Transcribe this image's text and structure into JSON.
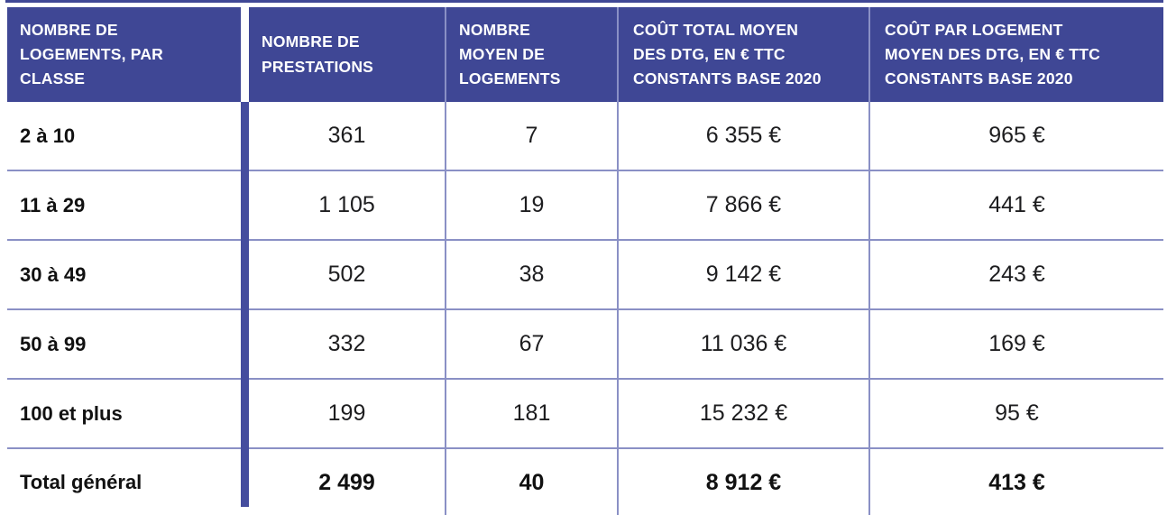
{
  "colors": {
    "header_bg": "#3F4795",
    "divider_bar": "#454D9E",
    "grid_line": "#8A90C5",
    "header_text": "#FFFFFF",
    "body_text": "#1D1D1F"
  },
  "table": {
    "header": {
      "classe": "NOMBRE DE\nLOGEMENTS, PAR\nCLASSE",
      "prestations": "NOMBRE DE\nPRESTATIONS",
      "moyen_logements": "NOMBRE\nMOYEN DE\nLOGEMENTS",
      "cout_total": "COÛT TOTAL MOYEN\nDES DTG, EN € TTC\nCONSTANTS BASE 2020",
      "cout_par_logement": "COÛT PAR LOGEMENT\nMOYEN DES DTG, EN € TTC\nCONSTANTS BASE 2020"
    },
    "rows": [
      {
        "classe": "2 à 10",
        "prestations": "361",
        "moyen_logements": "7",
        "cout_total": "6 355 €",
        "cout_par_logement": "965 €"
      },
      {
        "classe": "11 à 29",
        "prestations": "1 105",
        "moyen_logements": "19",
        "cout_total": "7 866 €",
        "cout_par_logement": "441 €"
      },
      {
        "classe": "30 à 49",
        "prestations": "502",
        "moyen_logements": "38",
        "cout_total": "9 142 €",
        "cout_par_logement": "243 €"
      },
      {
        "classe": "50 à 99",
        "prestations": "332",
        "moyen_logements": "67",
        "cout_total": "11 036 €",
        "cout_par_logement": "169 €"
      },
      {
        "classe": "100 et plus",
        "prestations": "199",
        "moyen_logements": "181",
        "cout_total": "15 232 €",
        "cout_par_logement": "95 €"
      }
    ],
    "total": {
      "classe": "Total général",
      "prestations": "2 499",
      "moyen_logements": "40",
      "cout_total": "8 912 €",
      "cout_par_logement": "413 €"
    }
  },
  "chart_data": {
    "type": "table",
    "columns": [
      "NOMBRE DE LOGEMENTS, PAR CLASSE",
      "NOMBRE DE PRESTATIONS",
      "NOMBRE MOYEN DE LOGEMENTS",
      "COÛT TOTAL MOYEN DES DTG, EN € TTC CONSTANTS BASE 2020",
      "COÛT PAR LOGEMENT MOYEN DES DTG, EN € TTC CONSTANTS BASE 2020"
    ],
    "rows": [
      [
        "2 à 10",
        361,
        7,
        6355,
        965
      ],
      [
        "11 à 29",
        1105,
        19,
        7866,
        441
      ],
      [
        "30 à 49",
        502,
        38,
        9142,
        243
      ],
      [
        "50 à 99",
        332,
        67,
        11036,
        169
      ],
      [
        "100 et plus",
        199,
        181,
        15232,
        95
      ],
      [
        "Total général",
        2499,
        40,
        8912,
        413
      ]
    ],
    "notes": "Costs in € TTC constants base 2020; last row is grand total"
  }
}
